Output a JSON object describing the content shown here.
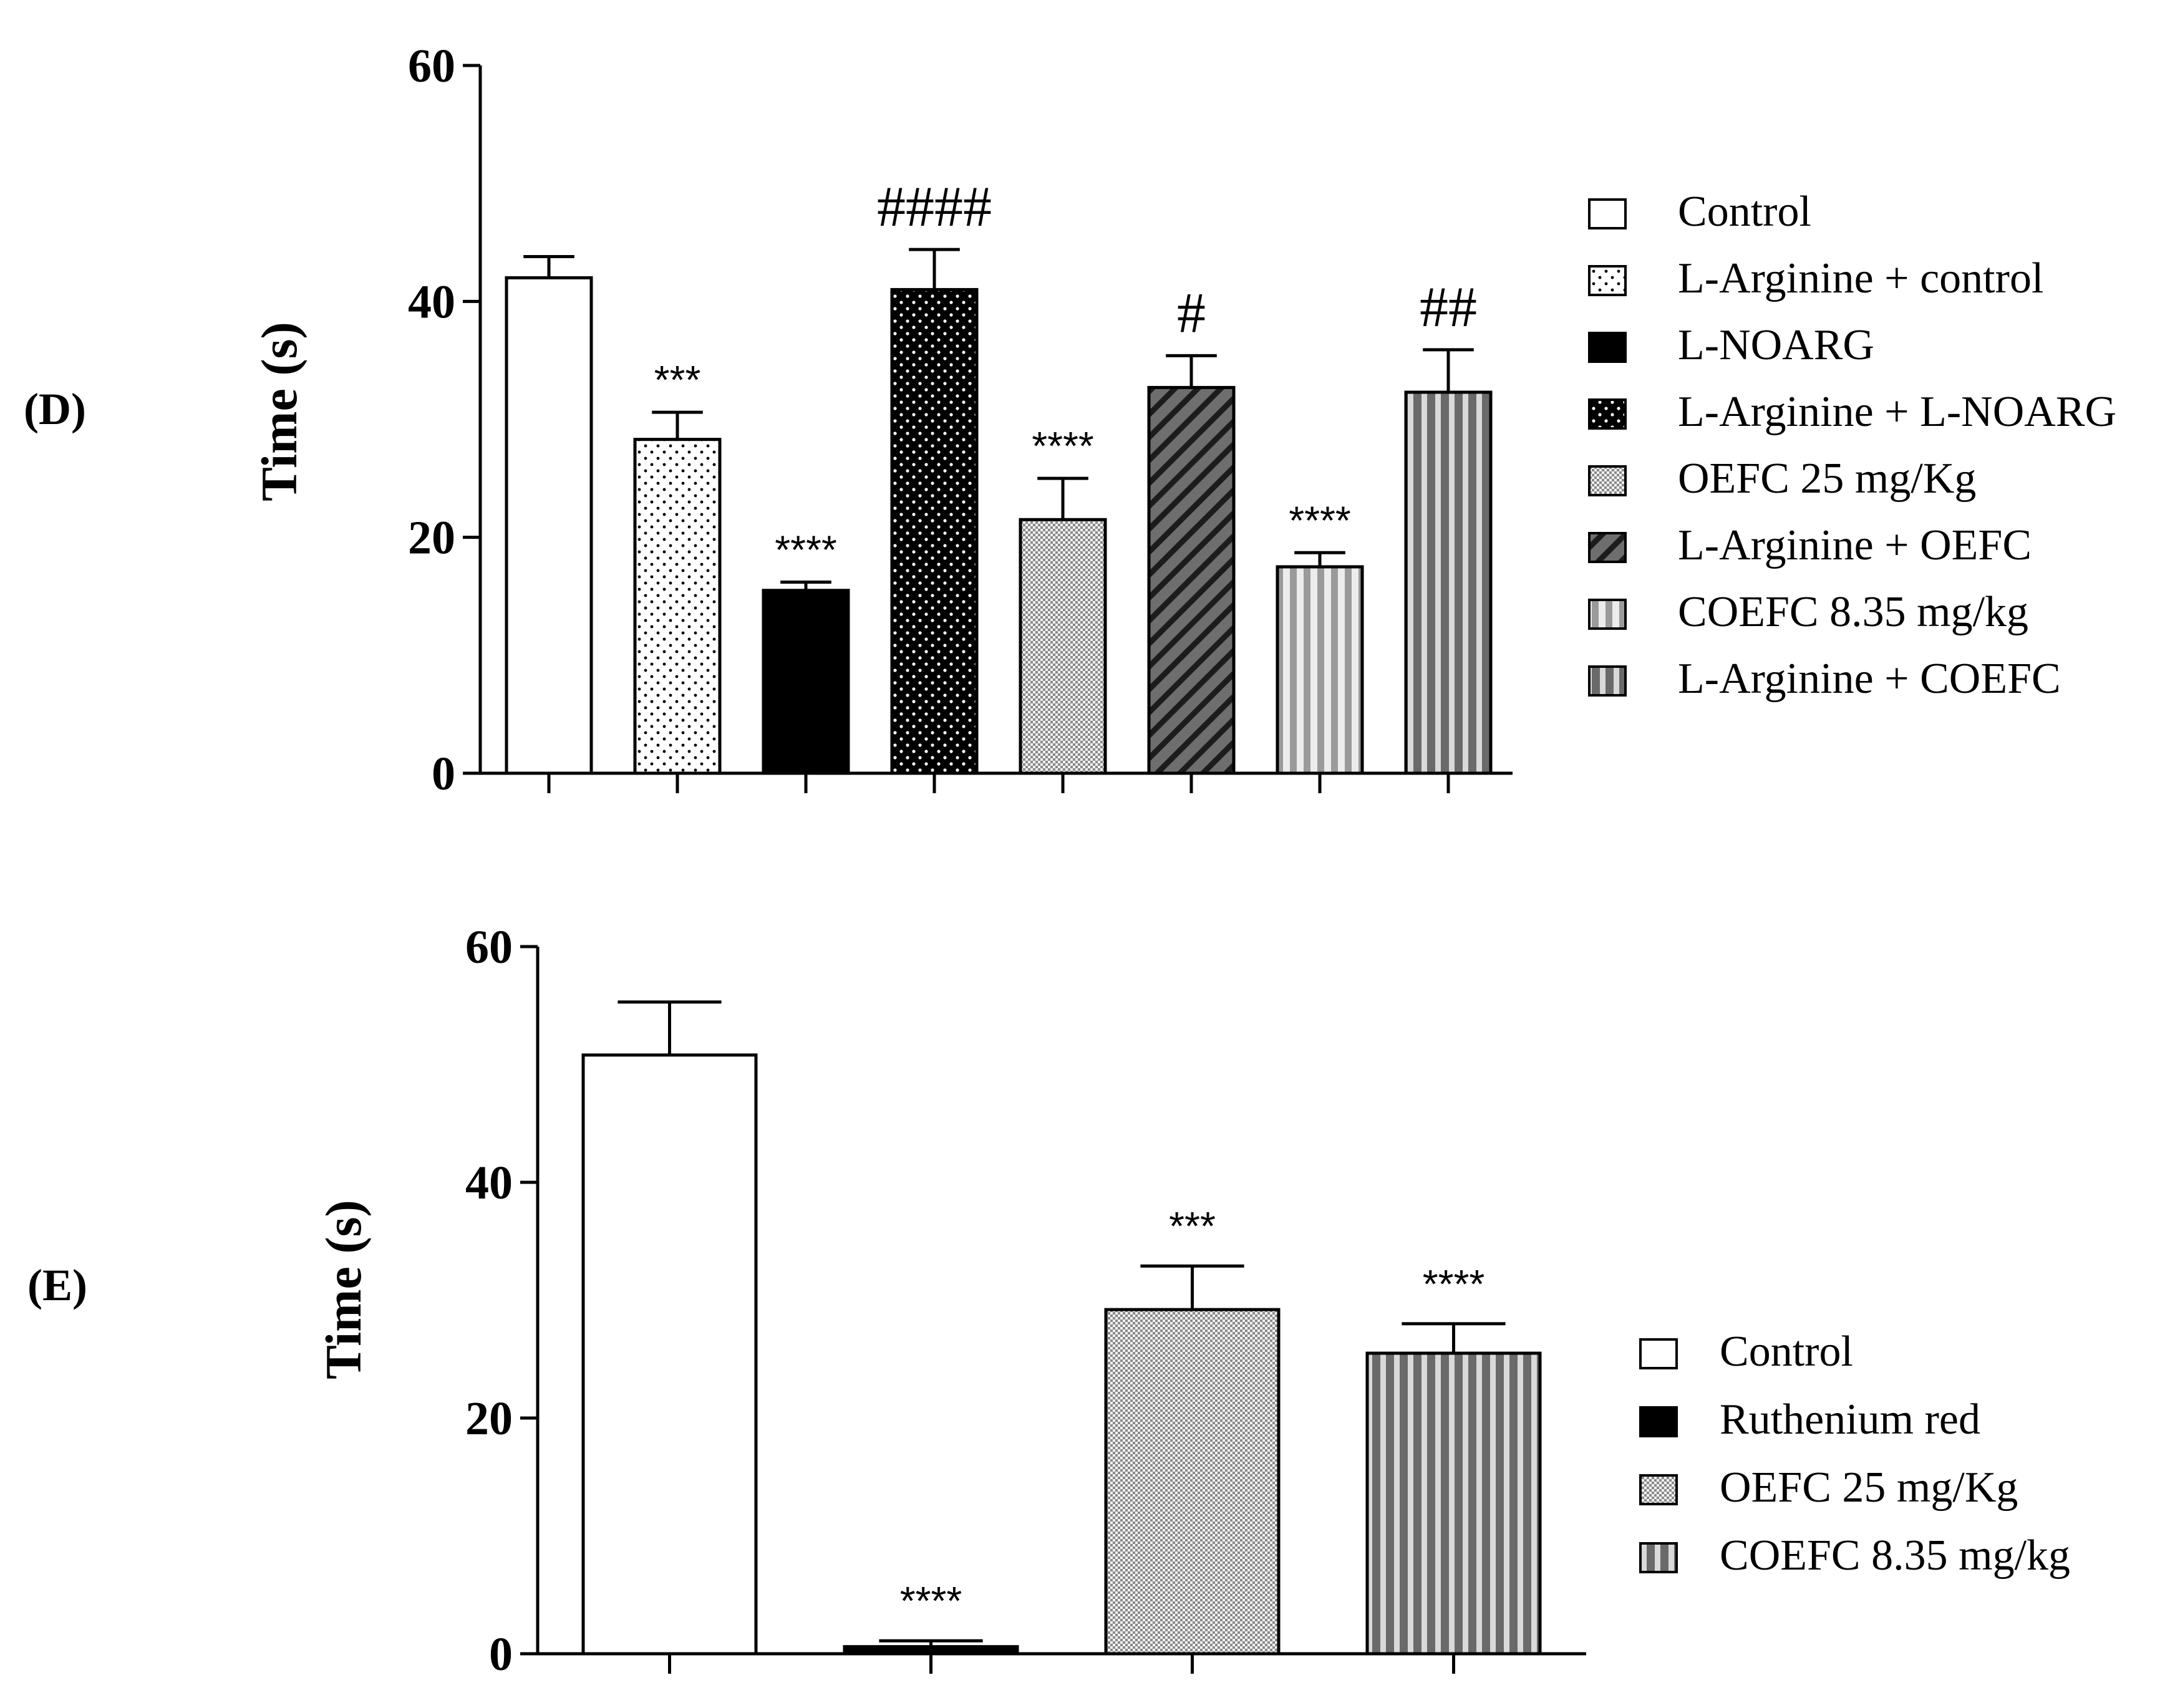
{
  "chart_data": [
    {
      "type": "bar",
      "panel_label": "(D)",
      "title": "",
      "xlabel": "",
      "ylabel": "Time (s)",
      "ylim": [
        0,
        60
      ],
      "yticks": [
        "0",
        "20",
        "40",
        "60"
      ],
      "legend_position": "right",
      "series": [
        {
          "name": "Control",
          "pattern": "white",
          "value": 42.0,
          "error": 1.8,
          "annotation": ""
        },
        {
          "name": "L-Arginine + control",
          "pattern": "sparse-dots",
          "value": 28.3,
          "error": 2.3,
          "annotation": "***"
        },
        {
          "name": "L-NOARG",
          "pattern": "solid-black",
          "value": 15.5,
          "error": 0.7,
          "annotation": "****"
        },
        {
          "name": "L-Arginine + L-NOARG",
          "pattern": "black-white-dots",
          "value": 41.0,
          "error": 3.4,
          "annotation": "####"
        },
        {
          "name": "OEFC 25 mg/Kg",
          "pattern": "fine-check",
          "value": 21.5,
          "error": 3.5,
          "annotation": "****"
        },
        {
          "name": "L-Arginine + OEFC",
          "pattern": "diagonal-dark",
          "value": 32.7,
          "error": 2.7,
          "annotation": "#"
        },
        {
          "name": "COEFC 8.35 mg/kg",
          "pattern": "vertical-light",
          "value": 17.5,
          "error": 1.2,
          "annotation": "****"
        },
        {
          "name": "L-Arginine + COEFC",
          "pattern": "vertical-dark",
          "value": 32.3,
          "error": 3.6,
          "annotation": "##"
        }
      ]
    },
    {
      "type": "bar",
      "panel_label": "(E)",
      "title": "",
      "xlabel": "",
      "ylabel": "Time (s)",
      "ylim": [
        0,
        60
      ],
      "yticks": [
        "0",
        "20",
        "40",
        "60"
      ],
      "legend_position": "bottom-right",
      "series": [
        {
          "name": "Control",
          "pattern": "white",
          "value": 50.8,
          "error": 4.5,
          "annotation": ""
        },
        {
          "name": "Ruthenium red",
          "pattern": "solid-black",
          "value": 0.6,
          "error": 0.5,
          "annotation": "****"
        },
        {
          "name": "OEFC 25 mg/Kg",
          "pattern": "fine-check",
          "value": 29.2,
          "error": 3.7,
          "annotation": "***"
        },
        {
          "name": "COEFC 8.35 mg/kg",
          "pattern": "vertical-dark",
          "value": 25.5,
          "error": 2.5,
          "annotation": "****"
        }
      ]
    }
  ]
}
